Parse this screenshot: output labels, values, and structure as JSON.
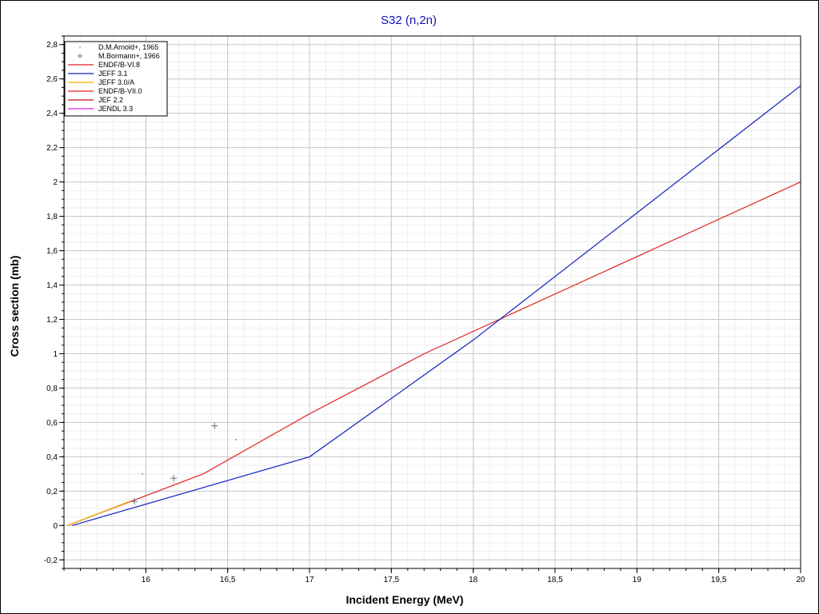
{
  "chart_data": {
    "type": "line",
    "title": "S32 (n,2n)",
    "xlabel": "Incident Energy (MeV)",
    "ylabel": "Cross section (mb)",
    "xlim": [
      15.5,
      20
    ],
    "ylim": [
      -0.25,
      2.85
    ],
    "x_ticks": [
      {
        "value": 16,
        "label": "16"
      },
      {
        "value": 16.5,
        "label": "16,5"
      },
      {
        "value": 17,
        "label": "17"
      },
      {
        "value": 17.5,
        "label": "17,5"
      },
      {
        "value": 18,
        "label": "18"
      },
      {
        "value": 18.5,
        "label": "18,5"
      },
      {
        "value": 19,
        "label": "19"
      },
      {
        "value": 19.5,
        "label": "19,5"
      },
      {
        "value": 20,
        "label": "20"
      }
    ],
    "y_ticks": [
      {
        "value": -0.2,
        "label": "-0,2"
      },
      {
        "value": 0,
        "label": "0"
      },
      {
        "value": 0.2,
        "label": "0,2"
      },
      {
        "value": 0.4,
        "label": "0,4"
      },
      {
        "value": 0.6,
        "label": "0,6"
      },
      {
        "value": 0.8,
        "label": "0,8"
      },
      {
        "value": 1,
        "label": "1"
      },
      {
        "value": 1.2,
        "label": "1,2"
      },
      {
        "value": 1.4,
        "label": "1,4"
      },
      {
        "value": 1.6,
        "label": "1,6"
      },
      {
        "value": 1.8,
        "label": "1,8"
      },
      {
        "value": 2,
        "label": "2"
      },
      {
        "value": 2.2,
        "label": "2,2"
      },
      {
        "value": 2.4,
        "label": "2,4"
      },
      {
        "value": 2.6,
        "label": "2,6"
      },
      {
        "value": 2.8,
        "label": "2,8"
      }
    ],
    "grid": true,
    "minor_grid": true,
    "legend_position": "top-left",
    "series": [
      {
        "name": "D.M.Arnold+, 1965",
        "kind": "points",
        "marker": "dot",
        "color": "#607070",
        "points": [
          [
            15.98,
            0.3
          ],
          [
            16.55,
            0.5
          ]
        ]
      },
      {
        "name": "M.Bormann+, 1966",
        "kind": "points",
        "marker": "plus",
        "color": "#607070",
        "points": [
          [
            15.93,
            0.14
          ],
          [
            16.17,
            0.275
          ],
          [
            16.42,
            0.58
          ]
        ]
      },
      {
        "name": "ENDF/B-VI.8",
        "kind": "line",
        "color": "#e02020",
        "points": [
          [
            15.52,
            0.0
          ],
          [
            16.35,
            0.3
          ],
          [
            17.0,
            0.65
          ],
          [
            17.7,
            1.0
          ],
          [
            20.0,
            2.0
          ]
        ]
      },
      {
        "name": "JEFF 3.1",
        "kind": "line",
        "color": "#1020c0",
        "points": [
          [
            15.55,
            0.0
          ],
          [
            17.0,
            0.4
          ],
          [
            18.0,
            1.08
          ],
          [
            20.0,
            2.56
          ]
        ]
      },
      {
        "name": "JEFF 3.0/A",
        "kind": "line",
        "color": "#f0b000",
        "points": [
          [
            15.52,
            0.0
          ],
          [
            15.9,
            0.14
          ]
        ]
      },
      {
        "name": "ENDF/B-VII.0",
        "kind": "line",
        "color": "#e02020",
        "points": []
      },
      {
        "name": "JEF 2.2",
        "kind": "line",
        "color": "#c01010",
        "points": []
      },
      {
        "name": "JENDL 3.3",
        "kind": "line",
        "color": "#e020e0",
        "points": []
      }
    ]
  }
}
